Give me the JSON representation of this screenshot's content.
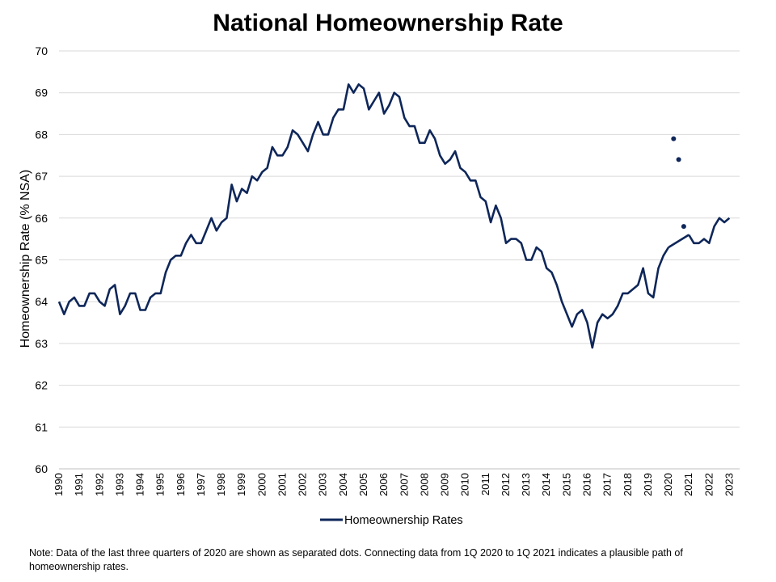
{
  "chart_data": {
    "type": "line",
    "title": "National Homeownership Rate",
    "ylabel": "Homeownership Rate (% NSA)",
    "xlabel": "",
    "ylim": [
      60,
      70
    ],
    "xlim": [
      1990,
      2023.5
    ],
    "grid": true,
    "legend_position": "bottom",
    "y_ticks": [
      "60",
      "61",
      "62",
      "63",
      "64",
      "65",
      "66",
      "67",
      "68",
      "69",
      "70"
    ],
    "x_ticks": [
      "1990",
      "1991",
      "1992",
      "1993",
      "1994",
      "1995",
      "1996",
      "1997",
      "1998",
      "1999",
      "2000",
      "2001",
      "2002",
      "2003",
      "2004",
      "2005",
      "2006",
      "2007",
      "2008",
      "2009",
      "2010",
      "2011",
      "2012",
      "2013",
      "2014",
      "2015",
      "2016",
      "2017",
      "2018",
      "2019",
      "2020",
      "2021",
      "2022",
      "2023"
    ],
    "color": "#0e2659",
    "series": [
      {
        "name": "Homeownership Rates",
        "values": [
          64.0,
          63.7,
          64.0,
          64.1,
          63.9,
          63.9,
          64.2,
          64.2,
          64.0,
          63.9,
          64.3,
          64.4,
          63.7,
          63.9,
          64.2,
          64.2,
          63.8,
          63.8,
          64.1,
          64.2,
          64.2,
          64.7,
          65.0,
          65.1,
          65.1,
          65.4,
          65.6,
          65.4,
          65.4,
          65.7,
          66.0,
          65.7,
          65.9,
          66.0,
          66.8,
          66.4,
          66.7,
          66.6,
          67.0,
          66.9,
          67.1,
          67.2,
          67.7,
          67.5,
          67.5,
          67.7,
          68.1,
          68.0,
          67.8,
          67.6,
          68.0,
          68.3,
          68.0,
          68.0,
          68.4,
          68.6,
          68.6,
          69.2,
          69.0,
          69.2,
          69.1,
          68.6,
          68.8,
          69.0,
          68.5,
          68.7,
          69.0,
          68.9,
          68.4,
          68.2,
          68.2,
          67.8,
          67.8,
          68.1,
          67.9,
          67.5,
          67.3,
          67.4,
          67.6,
          67.2,
          67.1,
          66.9,
          66.9,
          66.5,
          66.4,
          65.9,
          66.3,
          66.0,
          65.4,
          65.5,
          65.5,
          65.4,
          65.0,
          65.0,
          65.3,
          65.2,
          64.8,
          64.7,
          64.4,
          64.0,
          63.7,
          63.4,
          63.7,
          63.8,
          63.5,
          62.9,
          63.5,
          63.7,
          63.6,
          63.7,
          63.9,
          64.2,
          64.2,
          64.3,
          64.4,
          64.8,
          64.2,
          64.1,
          64.8,
          65.1,
          65.3
        ],
        "connector_2020_to_2021": [
          65.3,
          65.6
        ],
        "tail_values": [
          65.6,
          65.4,
          65.4,
          65.5,
          65.4,
          65.8,
          66.0,
          65.9,
          66.0
        ]
      }
    ],
    "separated_points_2020": [
      {
        "x": "2Q 2020",
        "y": 67.9
      },
      {
        "x": "3Q 2020",
        "y": 67.4
      },
      {
        "x": "4Q 2020",
        "y": 65.8
      }
    ]
  },
  "note": "Note: Data of the last three quarters of 2020 are shown as separated dots. Connecting data from 1Q 2020  to 1Q 2021  indicates a plausible path of homeownership rates."
}
